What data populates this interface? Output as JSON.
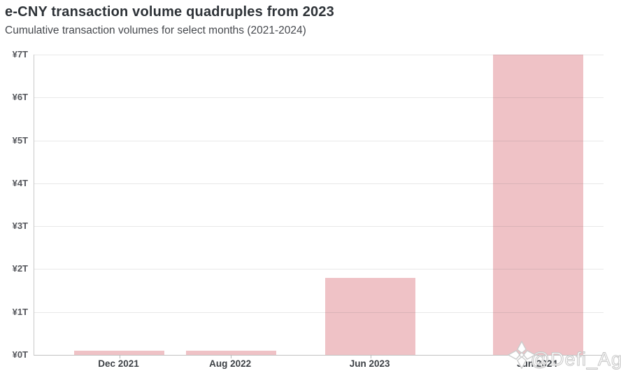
{
  "header": {
    "title": "e-CNY transaction volume quadruples from 2023",
    "subtitle": "Cumulative transaction volumes for select months (2021-2024)"
  },
  "watermark": {
    "handle": "@Defi_Ag"
  },
  "chart_data": {
    "type": "bar",
    "title": "e-CNY transaction volume quadruples from 2023",
    "subtitle": "Cumulative transaction volumes for select months (2021-2024)",
    "unit": "CNY trillions",
    "categories": [
      "Dec 2021",
      "Aug 2022",
      "Jun 2023",
      "Jun 2024"
    ],
    "values": [
      0.09,
      0.1,
      1.8,
      7.0
    ],
    "x_month_offsets": [
      0,
      8,
      18,
      30
    ],
    "x_scale": "time-proportional",
    "xlabel": "",
    "ylabel": "",
    "ylim": [
      0,
      7
    ],
    "y_tick_labels": [
      "¥0T",
      "¥1T",
      "¥2T",
      "¥3T",
      "¥4T",
      "¥5T",
      "¥6T",
      "¥7T"
    ],
    "grid": true,
    "legend": false,
    "bar_color": "#efc2c6",
    "gridline_color": "#e4e4e4",
    "axis_color": "#c7c7c7"
  }
}
